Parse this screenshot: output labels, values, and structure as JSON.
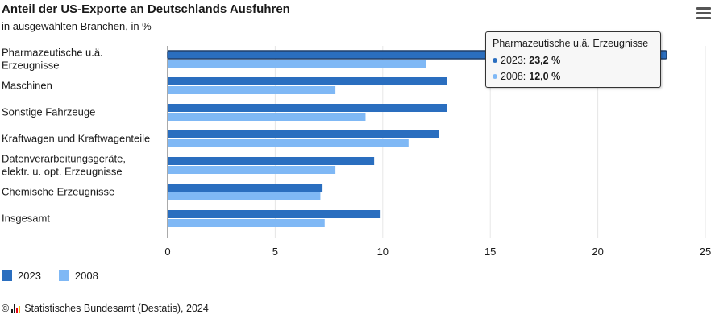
{
  "header": {
    "title": "Anteil der US-Exporte an Deutschlands Ausfuhren",
    "subtitle": "in ausgewählten Branchen, in %"
  },
  "chart_data": {
    "type": "bar",
    "orientation": "horizontal",
    "categories": [
      [
        "Pharmazeutische u.ä.",
        "Erzeugnisse"
      ],
      [
        "Maschinen"
      ],
      [
        "Sonstige Fahrzeuge"
      ],
      [
        "Kraftwagen und Kraftwagenteile"
      ],
      [
        "Datenverarbeitungsgeräte,",
        "elektr. u. opt. Erzeugnisse"
      ],
      [
        "Chemische Erzeugnisse"
      ],
      [
        "Insgesamt"
      ]
    ],
    "series": [
      {
        "name": "2023",
        "color": "#2a6ebf",
        "values": [
          23.2,
          13.0,
          13.0,
          12.6,
          9.6,
          7.2,
          9.9
        ]
      },
      {
        "name": "2008",
        "color": "#7fb8f5",
        "values": [
          12.0,
          7.8,
          9.2,
          11.2,
          7.8,
          7.1,
          7.3
        ]
      }
    ],
    "xlim": [
      0,
      25
    ],
    "xticks": [
      0,
      5,
      10,
      15,
      20,
      25
    ],
    "grid": true,
    "legend_position": "bottom-left"
  },
  "tooltip": {
    "title": "Pharmazeutische u.ä. Erzeugnisse",
    "rows": [
      {
        "label": "2023:",
        "value": "23,2 %",
        "color": "#2a6ebf"
      },
      {
        "label": "2008:",
        "value": "12,0 %",
        "color": "#7fb8f5"
      }
    ]
  },
  "footer": {
    "copyright_symbol": "©",
    "source": "Statistisches Bundesamt (Destatis), 2024"
  }
}
